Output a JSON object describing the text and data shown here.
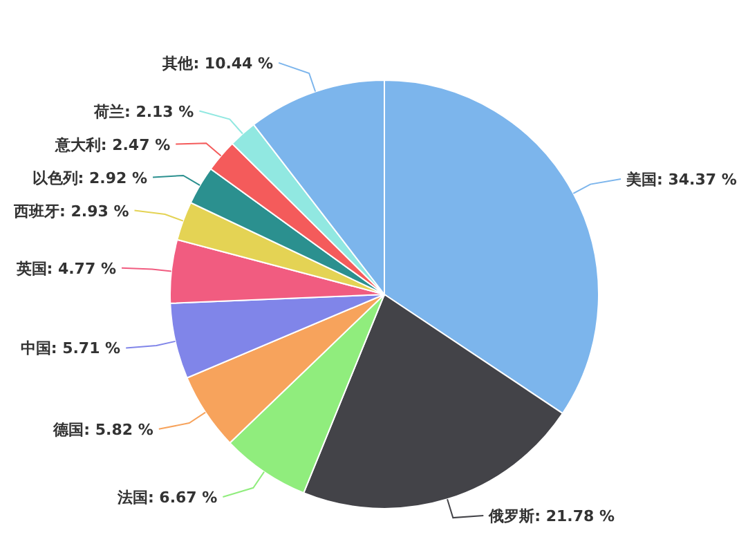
{
  "chart_data": {
    "type": "pie",
    "categories": [
      "美国",
      "俄罗斯",
      "法国",
      "德国",
      "中国",
      "英国",
      "西班牙",
      "以色列",
      "意大利",
      "荷兰",
      "其他"
    ],
    "values": [
      34.37,
      21.78,
      6.67,
      5.82,
      5.71,
      4.77,
      2.93,
      2.92,
      2.47,
      2.13,
      10.44
    ],
    "value_labels": [
      "34.37 %",
      "21.78 %",
      "6.67 %",
      "5.82 %",
      "5.71 %",
      "4.77 %",
      "2.93 %",
      "2.92 %",
      "2.47 %",
      "2.13 %",
      "10.44 %"
    ],
    "colors": [
      "#7cb5ec",
      "#434348",
      "#90ed7d",
      "#f7a35c",
      "#8085e9",
      "#f15c80",
      "#e4d354",
      "#2b908f",
      "#f45b5b",
      "#91e8e1",
      "#7cb5ec"
    ],
    "legend": false
  }
}
